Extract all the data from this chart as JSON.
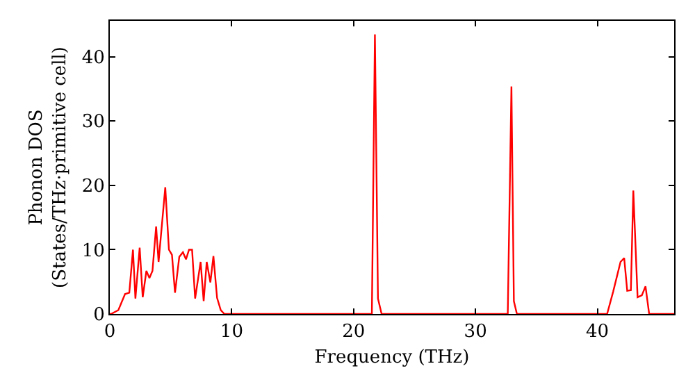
{
  "chart_data": {
    "type": "line",
    "xlabel": "Frequency (THz)",
    "ylabel": "Phonon DOS\n(States/THz·primitive cell)",
    "x": [
      0,
      0.1,
      0.7,
      1.25,
      1.6,
      1.9,
      2.1,
      2.45,
      2.7,
      3.0,
      3.25,
      3.5,
      3.8,
      4.0,
      4.55,
      4.85,
      5.1,
      5.35,
      5.7,
      6.0,
      6.25,
      6.5,
      6.75,
      7.0,
      7.45,
      7.7,
      7.95,
      8.25,
      8.5,
      8.8,
      9.1,
      9.4,
      21.5,
      21.75,
      22.0,
      22.3,
      32.65,
      32.95,
      33.15,
      33.4,
      40.8,
      41.3,
      41.9,
      42.2,
      42.45,
      42.75,
      42.95,
      43.3,
      43.65,
      43.95,
      44.25,
      46.3
    ],
    "series": [
      {
        "color": "#ff0000",
        "values": [
          0,
          0,
          0.6,
          3.1,
          3.3,
          10,
          2.4,
          10.3,
          2.6,
          6.7,
          5.6,
          6.7,
          13.6,
          8.1,
          19.7,
          10,
          9.2,
          3.3,
          8.9,
          9.6,
          8.5,
          10,
          10,
          2.4,
          8.1,
          2,
          8.1,
          4.9,
          9,
          2.5,
          0.6,
          0,
          0,
          43.5,
          2.4,
          0,
          0,
          35.4,
          2,
          0,
          0,
          3.5,
          8.1,
          8.7,
          3.6,
          3.7,
          19.2,
          2.6,
          2.9,
          4.3,
          0,
          0
        ]
      }
    ],
    "xlim": [
      0,
      46.3
    ],
    "xticks": [
      0,
      10,
      20,
      30,
      40
    ],
    "ylim": [
      0,
      45.6
    ],
    "yticks": [
      0,
      10,
      20,
      30,
      40
    ],
    "marker": "none",
    "line_style": "solid"
  }
}
